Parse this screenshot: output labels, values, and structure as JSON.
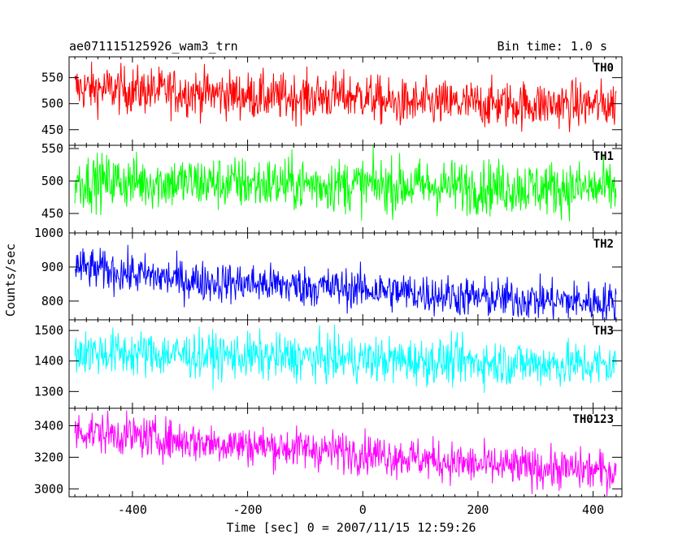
{
  "title_left": "ae071115125926_wam3_trn",
  "title_right": "Bin time: 1.0 s",
  "xlabel": "Time [sec] 0 = 2007/11/15 12:59:26",
  "ylabel": "Counts/sec",
  "chart_data": {
    "type": "line",
    "title": "ae071115125926_wam3_trn",
    "subtitle": "Bin time: 1.0 s",
    "xlabel": "Time [sec] 0 = 2007/11/15 12:59:26",
    "ylabel": "Counts/sec",
    "xlim": [
      -510,
      450
    ],
    "x_range_data": [
      -500,
      440
    ],
    "bin_time_s": 1.0,
    "x_ticks": [
      -400,
      -200,
      0,
      200,
      400
    ],
    "grid": false,
    "legend": "none",
    "panels": [
      {
        "name": "TH0",
        "color": "#ff0000",
        "ylim": [
          420,
          590
        ],
        "y_ticks": [
          450,
          500,
          550
        ],
        "trend": [
          [
            -500,
            530
          ],
          [
            -300,
            522
          ],
          [
            -150,
            512
          ],
          [
            0,
            515
          ],
          [
            50,
            500
          ],
          [
            440,
            498
          ]
        ],
        "noise_amplitude": 23
      },
      {
        "name": "TH1",
        "color": "#00ff00",
        "ylim": [
          420,
          555
        ],
        "y_ticks": [
          450,
          500,
          550
        ],
        "trend": [
          [
            -500,
            500
          ],
          [
            440,
            488
          ]
        ],
        "noise_amplitude": 21
      },
      {
        "name": "TH2",
        "color": "#0000ff",
        "ylim": [
          745,
          1000
        ],
        "y_ticks": [
          800,
          900,
          1000
        ],
        "trend": [
          [
            -500,
            900
          ],
          [
            -300,
            860
          ],
          [
            0,
            835
          ],
          [
            200,
            810
          ],
          [
            440,
            795
          ]
        ],
        "noise_amplitude": 30
      },
      {
        "name": "TH3",
        "color": "#00ffff",
        "ylim": [
          1245,
          1535
        ],
        "y_ticks": [
          1300,
          1400,
          1500
        ],
        "trend": [
          [
            -500,
            1430
          ],
          [
            0,
            1405
          ],
          [
            440,
            1385
          ]
        ],
        "noise_amplitude": 38
      },
      {
        "name": "TH0123",
        "color": "#ff00ff",
        "ylim": [
          2950,
          3510
        ],
        "y_ticks": [
          3000,
          3200,
          3400
        ],
        "trend": [
          [
            -500,
            3370
          ],
          [
            -300,
            3300
          ],
          [
            0,
            3230
          ],
          [
            200,
            3150
          ],
          [
            440,
            3110
          ]
        ],
        "noise_amplitude": 65
      }
    ]
  }
}
